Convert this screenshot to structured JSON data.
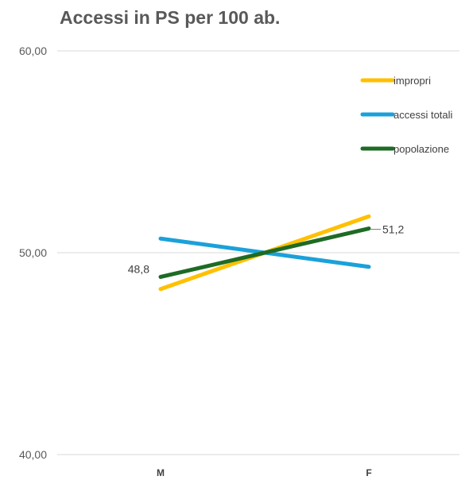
{
  "chart_data": {
    "type": "line",
    "title": "Accessi in PS per 100 ab.",
    "categories": [
      "M",
      "F"
    ],
    "ylim": [
      40,
      60
    ],
    "yticks": [
      "40,00",
      "50,00",
      "60,00"
    ],
    "ytick_values": [
      40,
      50,
      60
    ],
    "grid": true,
    "legend_position": "top-right",
    "series": [
      {
        "name": "impropri",
        "values": [
          48.2,
          51.8
        ],
        "color": "#FFC000"
      },
      {
        "name": "accessi totali",
        "values": [
          50.7,
          49.3
        ],
        "color": "#1BA1D9"
      },
      {
        "name": "popolazione",
        "values": [
          48.8,
          51.2
        ],
        "color": "#1E6B24"
      }
    ],
    "data_labels": [
      {
        "series": "popolazione",
        "category": "M",
        "text": "48,8"
      },
      {
        "series": "popolazione",
        "category": "F",
        "text": "51,2"
      }
    ]
  }
}
